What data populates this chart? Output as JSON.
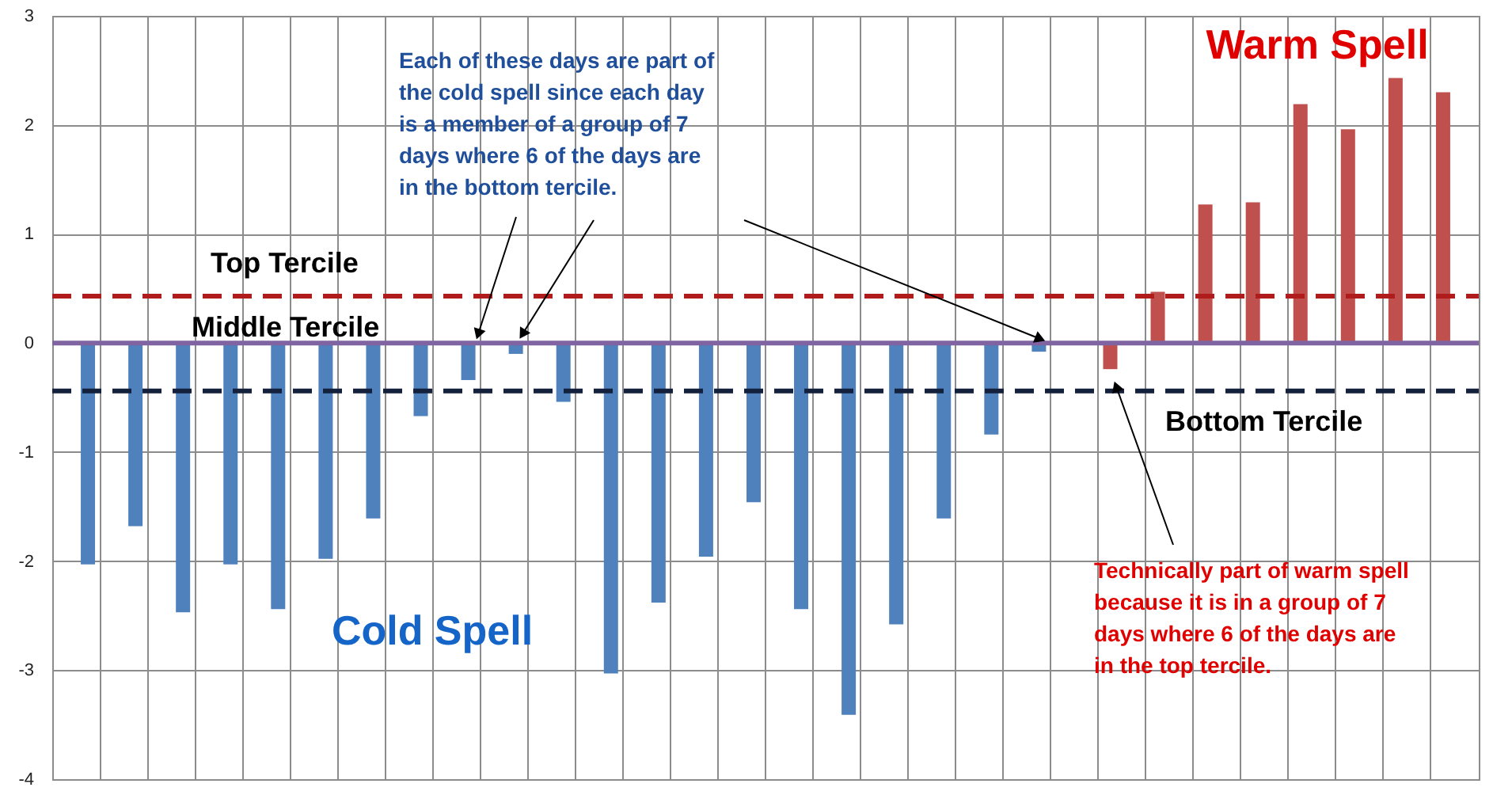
{
  "chart_data": {
    "type": "bar",
    "categories": [
      null,
      null,
      null,
      null,
      null,
      null,
      null,
      null,
      null,
      null,
      null,
      null,
      null,
      null,
      null,
      null,
      null,
      null,
      null,
      null,
      null,
      null,
      null,
      null,
      null,
      null,
      null,
      null,
      null,
      null
    ],
    "series": [
      {
        "color": "#4f81bd",
        "values": [
          -2.03,
          -1.68,
          -2.47,
          -2.03,
          -2.44,
          -1.98,
          -1.61,
          -0.67,
          -0.34,
          -0.1,
          -0.54,
          -3.03,
          -2.38,
          -1.96,
          -1.46,
          -2.44,
          -3.41,
          -2.58,
          -1.61,
          -0.84,
          -0.08,
          null,
          null,
          null,
          null,
          null,
          null,
          null,
          null,
          null
        ]
      },
      {
        "color": "#c0504d",
        "values": [
          null,
          null,
          null,
          null,
          null,
          null,
          null,
          null,
          null,
          null,
          null,
          null,
          null,
          null,
          null,
          null,
          null,
          null,
          null,
          null,
          null,
          null,
          -0.24,
          0.47,
          1.27,
          1.29,
          2.19,
          1.96,
          2.43,
          2.3
        ]
      }
    ],
    "ylim": [
      -4,
      3
    ],
    "yticks": [
      -4,
      -3,
      -2,
      -1,
      0,
      1,
      2,
      3
    ],
    "grid": true,
    "tick_labels": "y",
    "ref_lines": [
      {
        "axis": "y",
        "value": 0.43,
        "label": "Top Tercile",
        "color": "#b01c1c",
        "line_style": "dashed"
      },
      {
        "axis": "y",
        "value": 0,
        "label": "Middle Tercile",
        "color": "#8064a2",
        "line_style": "solid"
      },
      {
        "axis": "y",
        "value": -0.44,
        "label": "Bottom Tercile",
        "color": "#14213d",
        "line_style": "dashed"
      }
    ],
    "annotations": [
      "Cold Spell",
      "Warm Spell",
      "Each of these days are part of the cold spell since each day is a member of a group of 7 days where 6 of the days are in the bottom tercile.",
      "Technically part of warm spell because it is in a group of 7 days where 6 of the days are in the top tercile."
    ]
  }
}
